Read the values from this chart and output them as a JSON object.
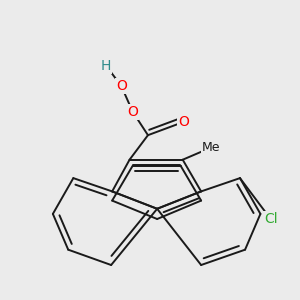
{
  "background_color": "#ebebeb",
  "bond_color": "#1a1a1a",
  "bond_width": 1.4,
  "figsize": [
    3.0,
    3.0
  ],
  "dpi": 100,
  "atoms": {
    "H": {
      "color": "#2e8b8b",
      "fontsize": 10
    },
    "O": {
      "color": "#ff0000",
      "fontsize": 10
    },
    "Cl": {
      "color": "#33aa33",
      "fontsize": 10
    },
    "Me": {
      "color": "#1a1a1a",
      "fontsize": 9
    }
  }
}
